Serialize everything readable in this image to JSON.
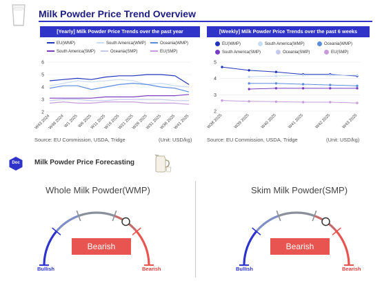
{
  "header": {
    "title": "Milk Powder Price Trend Overview"
  },
  "yearly_panel": {
    "title": "[Yearly] Milk Powder Price Trends over the past year",
    "legend": [
      "EU(WMP)",
      "South America(WMP)",
      "Oceania(WMP)",
      "South America(SMP)",
      "Oceania(SMP)",
      "EU(SMP)"
    ],
    "source": "Source: EU Commission, USDA, Tridge",
    "unit": "(Unit: USD/kg)"
  },
  "weekly_panel": {
    "title": "[Weekly] Milk Powder Price Trends over the past 6 weeks",
    "legend": [
      "EU(WMP)",
      "South America(WMP)",
      "Oceania(WMP)",
      "South America(SMP)",
      "Oceania(SMP)",
      "EU(SMP)"
    ],
    "source": "Source: EU Commission, USDA, Tridge",
    "unit": "(Unit: USD/kg)"
  },
  "forecast": {
    "badge": "Doc",
    "title": "Milk Powder Price Forecasting",
    "gauges": [
      {
        "title": "Whole Milk Powder(WMP)",
        "verdict": "Bearish",
        "low_label": "Bullish",
        "high_label": "Bearish"
      },
      {
        "title": "Skim Milk Powder(SMP)",
        "verdict": "Bearish",
        "low_label": "Bullish",
        "high_label": "Bearish"
      }
    ]
  },
  "colors": {
    "brand": "#2f33c8",
    "eu_wmp": "#2233bb",
    "sa_wmp": "#c8dcf4",
    "oc_wmp": "#5b8ce0",
    "sa_smp": "#7a3fc0",
    "oc_smp": "#c5c9ec",
    "eu_smp": "#c69cdc",
    "bearish": "#e85450",
    "bullish": "#2d33cc"
  },
  "chart_data": [
    {
      "type": "line",
      "ylim": [
        2,
        6
      ],
      "yticks": [
        2,
        3,
        4,
        5,
        6
      ],
      "x": [
        "W43 2024",
        "W48 2024",
        "W1 2025",
        "W6 2025",
        "W11 2025",
        "W16 2025",
        "W21 2025",
        "W26 2025",
        "W31 2025",
        "W36 2025",
        "W41 2025"
      ],
      "series": [
        {
          "name": "EU(WMP)",
          "values": [
            4.5,
            4.6,
            4.7,
            4.6,
            4.8,
            4.9,
            4.9,
            5.0,
            5.0,
            4.9,
            4.2
          ]
        },
        {
          "name": "South America(WMP)",
          "values": [
            4.1,
            4.3,
            4.5,
            4.4,
            4.5,
            4.6,
            4.5,
            4.2,
            4.3,
            4.1,
            4.0
          ]
        },
        {
          "name": "Oceania(WMP)",
          "values": [
            3.9,
            4.1,
            4.1,
            3.8,
            4.0,
            4.2,
            4.3,
            4.2,
            4.0,
            3.9,
            3.6
          ]
        },
        {
          "name": "South America(SMP)",
          "values": [
            3.1,
            3.1,
            3.1,
            3.1,
            3.2,
            3.2,
            3.2,
            3.3,
            3.3,
            3.3,
            3.4
          ]
        },
        {
          "name": "Oceania(SMP)",
          "values": [
            2.9,
            3.0,
            3.0,
            2.9,
            2.9,
            3.0,
            3.0,
            3.0,
            3.0,
            2.9,
            2.9
          ]
        },
        {
          "name": "EU(SMP)",
          "values": [
            2.7,
            2.8,
            2.7,
            2.7,
            2.8,
            2.8,
            2.8,
            2.7,
            2.7,
            2.7,
            2.6
          ]
        }
      ]
    },
    {
      "type": "line",
      "ylim": [
        2,
        5
      ],
      "yticks": [
        2,
        3,
        4,
        5
      ],
      "x": [
        "W38 2025",
        "W39 2025",
        "W40 2025",
        "W41 2025",
        "W42 2025",
        "W43 2025"
      ],
      "series": [
        {
          "name": "EU(WMP)",
          "values": [
            4.7,
            4.5,
            4.4,
            4.25,
            4.25,
            4.15
          ]
        },
        {
          "name": "South America(WMP)",
          "values": [
            null,
            4.1,
            4.15,
            4.2,
            4.2,
            4.2
          ]
        },
        {
          "name": "Oceania(WMP)",
          "values": [
            null,
            3.7,
            3.7,
            3.65,
            3.6,
            3.55
          ]
        },
        {
          "name": "South America(SMP)",
          "values": [
            null,
            3.35,
            3.4,
            3.4,
            3.4,
            3.4
          ]
        },
        {
          "name": "Oceania(SMP)",
          "values": [
            null,
            null,
            null,
            null,
            null,
            null
          ]
        },
        {
          "name": "EU(SMP)",
          "values": [
            2.65,
            2.6,
            2.58,
            2.55,
            2.55,
            2.5
          ]
        }
      ]
    }
  ]
}
